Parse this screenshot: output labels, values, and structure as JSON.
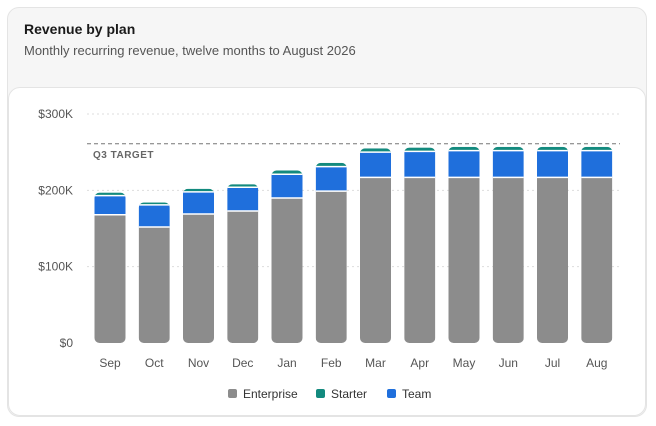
{
  "card": {
    "title": "Revenue by plan",
    "subtitle": "Monthly recurring revenue, twelve months to August 2026"
  },
  "chart_data": {
    "type": "bar",
    "stacked": true,
    "title": "Revenue by plan",
    "subtitle": "Monthly recurring revenue, twelve months to August 2026",
    "xlabel": "",
    "ylabel": "",
    "ylim": [
      0,
      300000
    ],
    "yticks": [
      0,
      100000,
      200000,
      300000
    ],
    "ytick_labels": [
      "$0",
      "$100K",
      "$200K",
      "$300K"
    ],
    "grid": true,
    "legend_position": "bottom-center",
    "categories": [
      "Sep",
      "Oct",
      "Nov",
      "Dec",
      "Jan",
      "Feb",
      "Mar",
      "Apr",
      "May",
      "Jun",
      "Jul",
      "Aug"
    ],
    "series": [
      {
        "name": "Enterprise",
        "color": "#8c8c8c",
        "values": [
          168000,
          152000,
          169000,
          173000,
          190000,
          199000,
          217000,
          217000,
          217000,
          217000,
          217000,
          217000
        ]
      },
      {
        "name": "Team",
        "color": "#1f6fdc",
        "values": [
          25000,
          29000,
          29000,
          31000,
          31000,
          32000,
          33000,
          34000,
          35000,
          35000,
          35000,
          35000
        ]
      },
      {
        "name": "Starter",
        "color": "#138a7e",
        "values": [
          4000,
          3000,
          4000,
          4000,
          5000,
          5000,
          5000,
          5000,
          5000,
          5000,
          5000,
          5000
        ]
      }
    ],
    "stack_order": [
      "Enterprise",
      "Team",
      "Starter"
    ],
    "legend_order": [
      "Enterprise",
      "Starter",
      "Team"
    ],
    "annotations": [
      {
        "type": "reference-line",
        "label": "Q3 TARGET",
        "value": 261000,
        "style": "dashed",
        "color": "#777777"
      }
    ]
  }
}
